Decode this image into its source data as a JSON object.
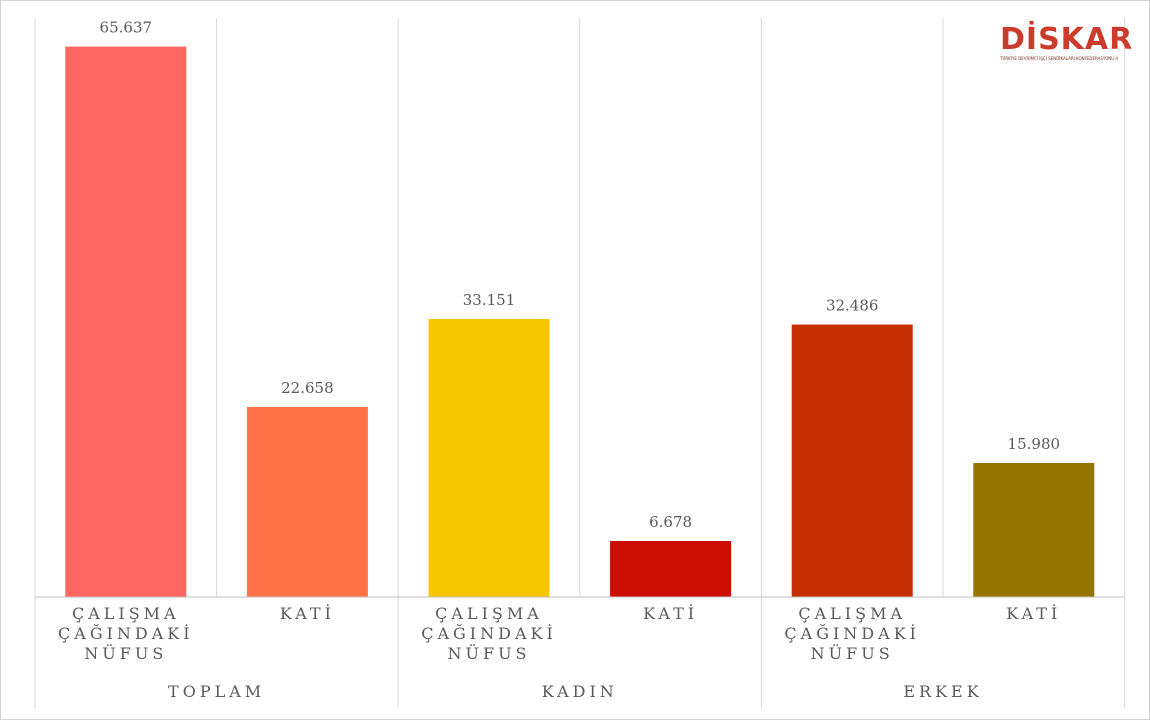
{
  "chart_data": {
    "type": "bar",
    "groups": [
      "TOPLAM",
      "KADIN",
      "ERKEK"
    ],
    "bars": [
      {
        "group": "TOPLAM",
        "category": [
          "ÇALIŞMA",
          "ÇAĞINDAKİ",
          "NÜFUS"
        ],
        "value": 65637,
        "label": "65.637",
        "color": "#ff6561"
      },
      {
        "group": "TOPLAM",
        "category": [
          "KATİ"
        ],
        "value": 22658,
        "label": "22.658",
        "color": "#ff7248"
      },
      {
        "group": "KADIN",
        "category": [
          "ÇALIŞMA",
          "ÇAĞINDAKİ",
          "NÜFUS"
        ],
        "value": 33151,
        "label": "33.151",
        "color": "#f8c600"
      },
      {
        "group": "KADIN",
        "category": [
          "KATİ"
        ],
        "value": 6678,
        "label": "6.678",
        "color": "#cc0d01"
      },
      {
        "group": "ERKEK",
        "category": [
          "ÇALIŞMA",
          "ÇAĞINDAKİ",
          "NÜFUS"
        ],
        "value": 32486,
        "label": "32.486",
        "color": "#c52f00"
      },
      {
        "group": "ERKEK",
        "category": [
          "KATİ"
        ],
        "value": 15980,
        "label": "15.980",
        "color": "#967400"
      }
    ],
    "ylim": [
      0,
      70000
    ],
    "grid": true,
    "legend": "none"
  },
  "logo": {
    "name": "DİSKAR",
    "subtitle": "TÜRKİYE DEVRİMCİ İŞÇİ SENDİKALARI KONFEDERASYONU ARAŞTIRMA MERKEZİ"
  }
}
